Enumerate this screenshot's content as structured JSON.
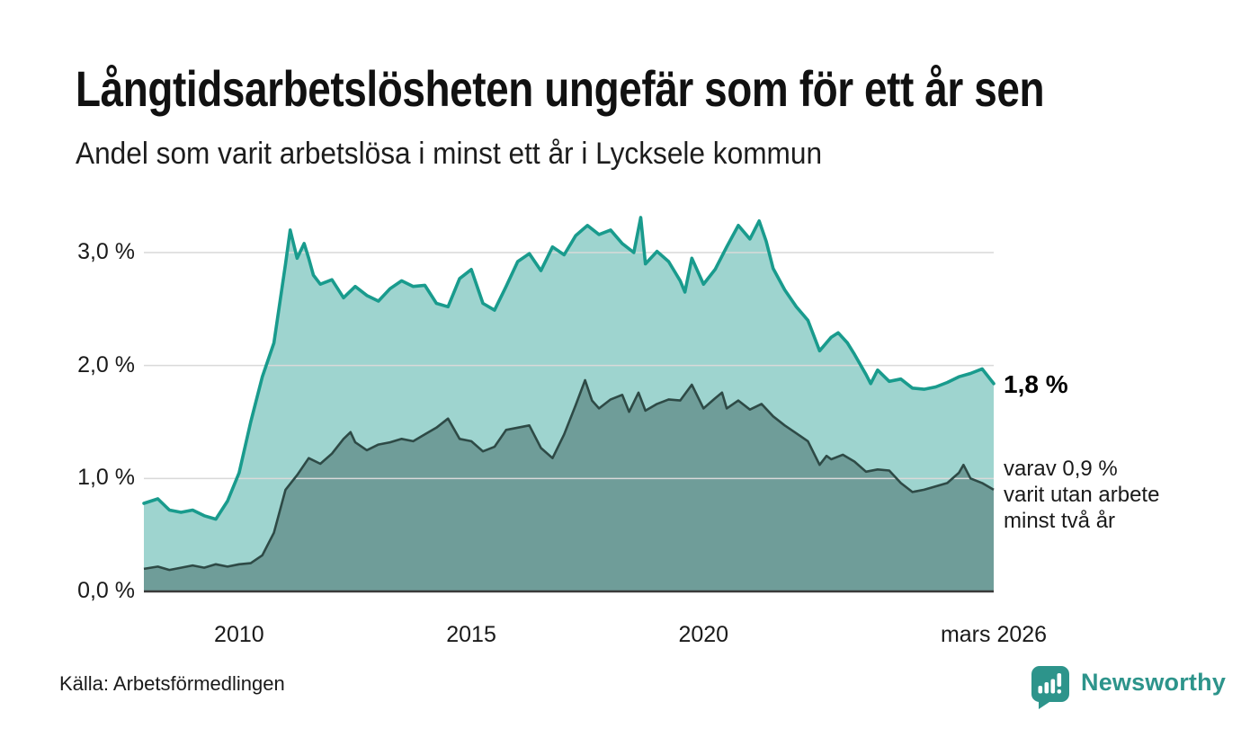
{
  "header": {
    "title": "Långtidsarbetslösheten ungefär som för ett år sen",
    "subtitle": "Andel som varit arbetslösa i minst ett år i Lycksele kommun"
  },
  "colors": {
    "accent_line": "#199b8d",
    "fill_light": "#9ed4cf",
    "fill_dark": "#6f9d99",
    "line_dark": "#2e4a46",
    "gridline": "#d9d9d9",
    "baseline": "#3a3a3a",
    "brand": "#2d948b",
    "text": "#1a1a1a"
  },
  "chart_data": {
    "type": "area",
    "title": "Långtidsarbetslösheten ungefär som för ett år sen",
    "xlabel": "",
    "ylabel": "",
    "ylim": [
      0,
      3.5
    ],
    "x_range": [
      2007.95,
      2026.25
    ],
    "grid": true,
    "y_ticks": [
      {
        "label": "3,0 %",
        "value": 3.0
      },
      {
        "label": "2,0 %",
        "value": 2.0
      },
      {
        "label": "1,0 %",
        "value": 1.0
      },
      {
        "label": "0,0 %",
        "value": 0.0
      }
    ],
    "x_ticks": [
      {
        "label": "2010",
        "year": 2010
      },
      {
        "label": "2015",
        "year": 2015
      },
      {
        "label": "2020",
        "year": 2020
      },
      {
        "label": "mars 2026",
        "year": 2026.25
      }
    ],
    "series": [
      {
        "name": "Arbetslösa minst ett år",
        "line_color": "#199b8d",
        "fill_color": "#9ed4cf",
        "end_label": "1,8 %",
        "latest_value": 1.8,
        "x": [
          2007.95,
          2008.25,
          2008.5,
          2008.75,
          2009.0,
          2009.25,
          2009.5,
          2009.75,
          2010.0,
          2010.25,
          2010.5,
          2010.75,
          2011.0,
          2011.1,
          2011.25,
          2011.4,
          2011.5,
          2011.6,
          2011.75,
          2012.0,
          2012.25,
          2012.5,
          2012.75,
          2013.0,
          2013.25,
          2013.5,
          2013.75,
          2014.0,
          2014.25,
          2014.5,
          2014.75,
          2015.0,
          2015.25,
          2015.5,
          2015.75,
          2016.0,
          2016.25,
          2016.5,
          2016.75,
          2017.0,
          2017.25,
          2017.5,
          2017.75,
          2018.0,
          2018.25,
          2018.5,
          2018.65,
          2018.75,
          2019.0,
          2019.25,
          2019.5,
          2019.6,
          2019.75,
          2020.0,
          2020.25,
          2020.5,
          2020.75,
          2021.0,
          2021.2,
          2021.35,
          2021.5,
          2021.75,
          2022.0,
          2022.25,
          2022.5,
          2022.75,
          2022.9,
          2023.1,
          2023.25,
          2023.5,
          2023.6,
          2023.75,
          2024.0,
          2024.25,
          2024.5,
          2024.75,
          2025.0,
          2025.25,
          2025.5,
          2025.75,
          2026.0,
          2026.25
        ],
        "values": [
          0.78,
          0.82,
          0.72,
          0.7,
          0.72,
          0.67,
          0.64,
          0.8,
          1.05,
          1.5,
          1.9,
          2.2,
          2.9,
          3.2,
          2.95,
          3.08,
          2.95,
          2.8,
          2.72,
          2.76,
          2.6,
          2.7,
          2.62,
          2.57,
          2.68,
          2.75,
          2.7,
          2.71,
          2.55,
          2.52,
          2.77,
          2.85,
          2.55,
          2.49,
          2.7,
          2.92,
          2.99,
          2.84,
          3.05,
          2.98,
          3.15,
          3.24,
          3.16,
          3.2,
          3.08,
          3.0,
          3.31,
          2.9,
          3.01,
          2.92,
          2.75,
          2.65,
          2.95,
          2.72,
          2.85,
          3.05,
          3.24,
          3.12,
          3.28,
          3.1,
          2.86,
          2.67,
          2.52,
          2.4,
          2.13,
          2.25,
          2.29,
          2.2,
          2.1,
          1.92,
          1.84,
          1.96,
          1.86,
          1.88,
          1.8,
          1.79,
          1.81,
          1.85,
          1.9,
          1.93,
          1.97,
          1.84
        ]
      },
      {
        "name": "Arbetslösa minst två år",
        "line_color": "#2e4a46",
        "fill_color": "#6f9d99",
        "end_label": "varav 0,9 % varit utan arbete minst två år",
        "latest_value": 0.9,
        "x": [
          2007.95,
          2008.25,
          2008.5,
          2008.75,
          2009.0,
          2009.25,
          2009.5,
          2009.75,
          2010.0,
          2010.25,
          2010.5,
          2010.75,
          2011.0,
          2011.25,
          2011.5,
          2011.75,
          2012.0,
          2012.25,
          2012.4,
          2012.5,
          2012.75,
          2013.0,
          2013.25,
          2013.5,
          2013.75,
          2014.0,
          2014.25,
          2014.5,
          2014.75,
          2015.0,
          2015.25,
          2015.5,
          2015.75,
          2016.0,
          2016.25,
          2016.5,
          2016.75,
          2017.0,
          2017.25,
          2017.45,
          2017.6,
          2017.75,
          2018.0,
          2018.25,
          2018.4,
          2018.6,
          2018.75,
          2019.0,
          2019.25,
          2019.5,
          2019.75,
          2020.0,
          2020.25,
          2020.4,
          2020.5,
          2020.75,
          2021.0,
          2021.25,
          2021.5,
          2021.75,
          2022.0,
          2022.25,
          2022.5,
          2022.65,
          2022.75,
          2023.0,
          2023.25,
          2023.5,
          2023.75,
          2024.0,
          2024.25,
          2024.5,
          2024.75,
          2025.0,
          2025.25,
          2025.5,
          2025.6,
          2025.75,
          2026.0,
          2026.25
        ],
        "values": [
          0.2,
          0.22,
          0.19,
          0.21,
          0.23,
          0.21,
          0.24,
          0.22,
          0.24,
          0.25,
          0.32,
          0.52,
          0.9,
          1.03,
          1.18,
          1.13,
          1.22,
          1.35,
          1.41,
          1.32,
          1.25,
          1.3,
          1.32,
          1.35,
          1.33,
          1.39,
          1.45,
          1.53,
          1.35,
          1.33,
          1.24,
          1.28,
          1.43,
          1.45,
          1.47,
          1.27,
          1.18,
          1.39,
          1.65,
          1.87,
          1.69,
          1.62,
          1.7,
          1.74,
          1.59,
          1.76,
          1.6,
          1.66,
          1.7,
          1.69,
          1.83,
          1.62,
          1.71,
          1.76,
          1.62,
          1.69,
          1.61,
          1.66,
          1.55,
          1.47,
          1.4,
          1.33,
          1.12,
          1.2,
          1.17,
          1.21,
          1.15,
          1.06,
          1.08,
          1.07,
          0.96,
          0.88,
          0.9,
          0.93,
          0.96,
          1.05,
          1.12,
          1.0,
          0.96,
          0.9
        ]
      }
    ],
    "legend_position": "end-of-line-labels"
  },
  "annotations": {
    "latest_total": "1,8 %",
    "latest_two_years_lines": [
      "varav 0,9 %",
      "varit utan arbete",
      "minst två år"
    ]
  },
  "footer": {
    "source": "Källa: Arbetsförmedlingen",
    "brand": "Newsworthy"
  }
}
